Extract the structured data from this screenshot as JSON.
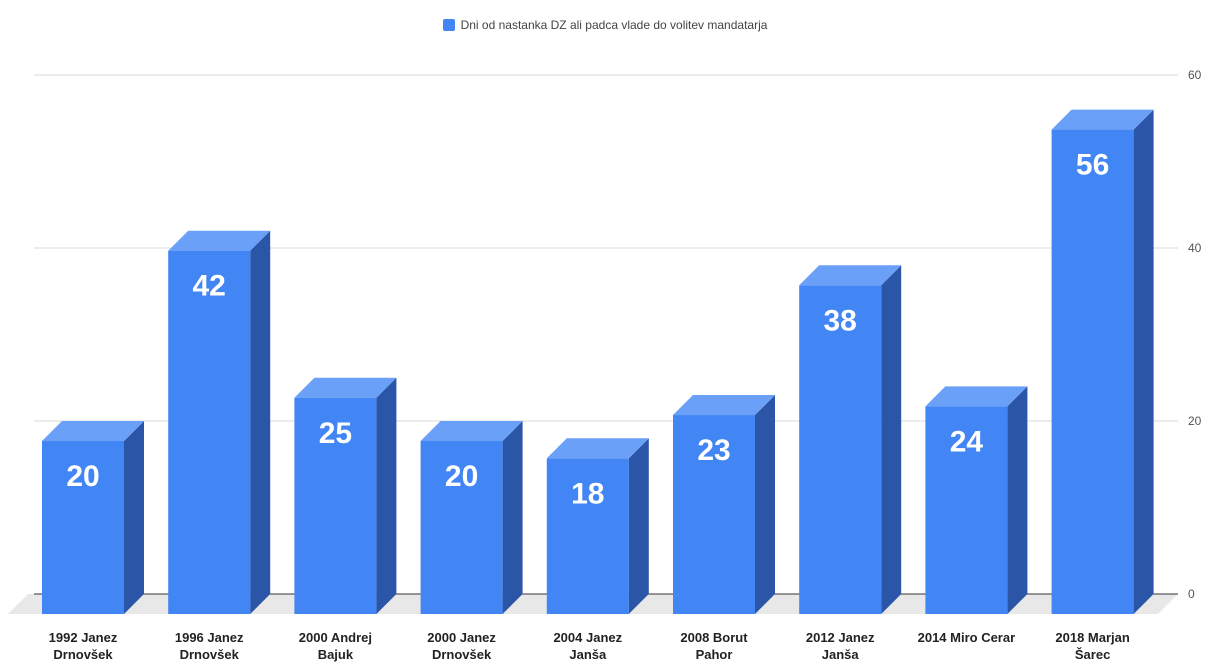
{
  "chart_data": {
    "type": "bar",
    "categories": [
      [
        "1992 Janez",
        "Drnovšek"
      ],
      [
        "1996 Janez",
        "Drnovšek"
      ],
      [
        "2000 Andrej",
        "Bajuk"
      ],
      [
        "2000 Janez",
        "Drnovšek"
      ],
      [
        "2004 Janez",
        "Janša"
      ],
      [
        "2008 Borut",
        "Pahor"
      ],
      [
        "2012 Janez",
        "Janša"
      ],
      [
        "2014 Miro Cerar"
      ],
      [
        "2018 Marjan",
        "Šarec"
      ]
    ],
    "series": [
      {
        "name": "Dni od nastanka DZ ali padca vlade do volitev mandatarja",
        "values": [
          20,
          42,
          25,
          20,
          18,
          23,
          38,
          24,
          56
        ]
      }
    ],
    "title": "",
    "xlabel": "",
    "ylabel": "",
    "ylim": [
      0,
      60
    ],
    "y_ticks": [
      0,
      20,
      40,
      60
    ],
    "y_axis_side": "right",
    "grid": true,
    "legend_position": "top-center",
    "three_d": true,
    "data_labels": true,
    "colors": {
      "front": "#4285f4",
      "top": "#6aa0f7",
      "side": "#2b56a8",
      "floor": "#e8e8e8",
      "grid": "#d9d9d9",
      "axis_text": "#555555",
      "label_text": "#222222",
      "value_text": "#ffffff"
    }
  }
}
